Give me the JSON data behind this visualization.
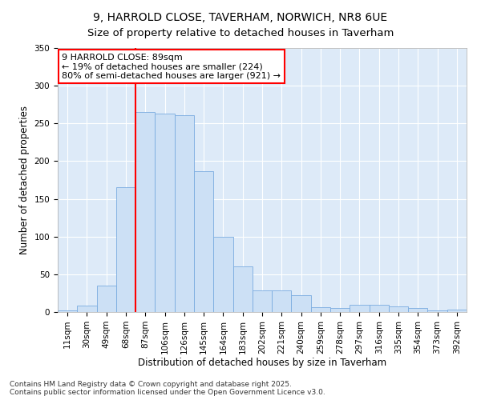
{
  "title": "9, HARROLD CLOSE, TAVERHAM, NORWICH, NR8 6UE",
  "subtitle": "Size of property relative to detached houses in Taverham",
  "xlabel": "Distribution of detached houses by size in Taverham",
  "ylabel": "Number of detached properties",
  "categories": [
    "11sqm",
    "30sqm",
    "49sqm",
    "68sqm",
    "87sqm",
    "106sqm",
    "126sqm",
    "145sqm",
    "164sqm",
    "183sqm",
    "202sqm",
    "221sqm",
    "240sqm",
    "259sqm",
    "278sqm",
    "297sqm",
    "316sqm",
    "335sqm",
    "354sqm",
    "373sqm",
    "392sqm"
  ],
  "values": [
    2,
    9,
    35,
    165,
    265,
    263,
    261,
    187,
    100,
    60,
    29,
    29,
    22,
    6,
    5,
    10,
    10,
    7,
    5,
    2,
    3
  ],
  "bar_color": "#cce0f5",
  "bar_edge_color": "#7aabe0",
  "vline_x": 4,
  "vline_color": "red",
  "annotation_text": "9 HARROLD CLOSE: 89sqm\n← 19% of detached houses are smaller (224)\n80% of semi-detached houses are larger (921) →",
  "annotation_box_color": "white",
  "annotation_box_edge": "red",
  "ylim": [
    0,
    350
  ],
  "yticks": [
    0,
    50,
    100,
    150,
    200,
    250,
    300,
    350
  ],
  "background_color": "#ddeaf8",
  "footer": "Contains HM Land Registry data © Crown copyright and database right 2025.\nContains public sector information licensed under the Open Government Licence v3.0.",
  "title_fontsize": 10,
  "subtitle_fontsize": 9.5,
  "axis_label_fontsize": 8.5,
  "tick_fontsize": 7.5,
  "annotation_fontsize": 8
}
